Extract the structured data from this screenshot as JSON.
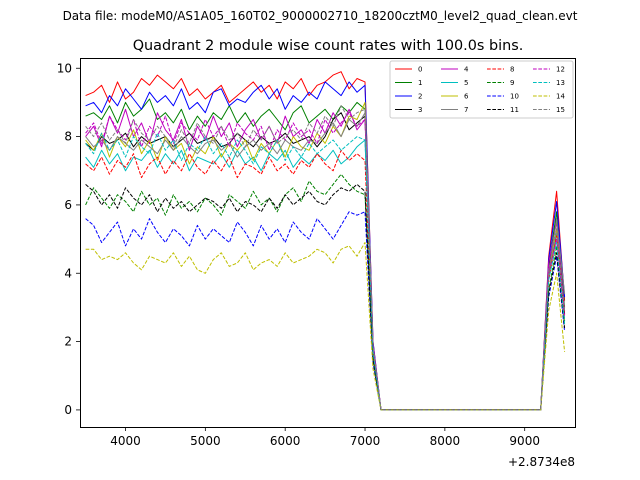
{
  "chart_data": {
    "type": "line",
    "suptitle": "Data file: modeM0/AS1A05_160T02_9000002710_18200cztM0_level2_quad_clean.evt",
    "title": "Quadrant 2 module wise count rates with 100.0s bins.",
    "xlabel": "",
    "ylabel": "",
    "x_offset_label": "+2.8734e8",
    "xlim": [
      3430,
      9630
    ],
    "ylim": [
      -0.5,
      10.3
    ],
    "xticks": [
      "4000",
      "5000",
      "6000",
      "7000",
      "8000",
      "9000"
    ],
    "yticks": [
      "0",
      "2",
      "4",
      "6",
      "8",
      "10"
    ],
    "grid": false,
    "legend_position": "top-right",
    "x": [
      3500,
      3600,
      3700,
      3800,
      3900,
      4000,
      4100,
      4200,
      4300,
      4400,
      4500,
      4600,
      4700,
      4800,
      4900,
      5000,
      5100,
      5200,
      5300,
      5400,
      5500,
      5600,
      5700,
      5800,
      5900,
      6000,
      6100,
      6200,
      6300,
      6400,
      6500,
      6600,
      6700,
      6800,
      6900,
      7000,
      7100,
      7200,
      7300,
      7400,
      7500,
      7600,
      7700,
      7800,
      7900,
      8000,
      8100,
      8200,
      8300,
      8400,
      8500,
      8600,
      8700,
      8800,
      8900,
      9000,
      9100,
      9200,
      9300,
      9400,
      9500
    ],
    "series": [
      {
        "name": "0",
        "color": "#ff0000",
        "dash": "solid",
        "values": [
          9.2,
          9.3,
          9.5,
          9.0,
          9.6,
          9.1,
          9.3,
          9.7,
          9.5,
          9.8,
          9.6,
          9.4,
          9.7,
          9.2,
          9.4,
          9.1,
          9.3,
          9.5,
          9.0,
          9.2,
          9.4,
          9.6,
          9.3,
          9.5,
          9.1,
          9.6,
          9.4,
          9.7,
          9.2,
          9.5,
          9.6,
          9.8,
          9.9,
          9.4,
          9.7,
          9.6,
          2.0,
          0.0,
          0.0,
          0.0,
          0.0,
          0.0,
          0.0,
          0.0,
          0.0,
          0.0,
          0.0,
          0.0,
          0.0,
          0.0,
          0.0,
          0.0,
          0.0,
          0.0,
          0.0,
          0.0,
          0.0,
          0.0,
          4.5,
          6.4,
          3.2
        ]
      },
      {
        "name": "1",
        "color": "#008000",
        "dash": "solid",
        "values": [
          8.6,
          8.7,
          8.5,
          8.9,
          8.4,
          9.0,
          8.6,
          8.8,
          9.1,
          8.5,
          8.7,
          8.4,
          8.8,
          8.2,
          8.6,
          8.3,
          8.7,
          8.5,
          8.9,
          8.4,
          8.7,
          8.3,
          8.6,
          8.8,
          8.5,
          8.2,
          8.7,
          8.9,
          8.4,
          8.6,
          8.8,
          8.5,
          8.9,
          8.7,
          9.0,
          8.8,
          1.8,
          0.0,
          0.0,
          0.0,
          0.0,
          0.0,
          0.0,
          0.0,
          0.0,
          0.0,
          0.0,
          0.0,
          0.0,
          0.0,
          0.0,
          0.0,
          0.0,
          0.0,
          0.0,
          0.0,
          0.0,
          0.0,
          4.2,
          5.8,
          3.0
        ]
      },
      {
        "name": "2",
        "color": "#0000ff",
        "dash": "solid",
        "values": [
          8.9,
          9.0,
          8.7,
          9.2,
          8.9,
          9.4,
          9.1,
          8.8,
          9.3,
          9.0,
          9.2,
          8.9,
          9.4,
          8.8,
          9.0,
          8.7,
          9.3,
          9.4,
          8.9,
          9.1,
          9.0,
          9.3,
          9.5,
          9.1,
          9.4,
          8.8,
          9.2,
          9.0,
          9.3,
          9.1,
          9.6,
          9.4,
          9.2,
          9.6,
          9.3,
          9.5,
          2.0,
          0.0,
          0.0,
          0.0,
          0.0,
          0.0,
          0.0,
          0.0,
          0.0,
          0.0,
          0.0,
          0.0,
          0.0,
          0.0,
          0.0,
          0.0,
          0.0,
          0.0,
          0.0,
          0.0,
          0.0,
          0.0,
          4.4,
          6.1,
          3.3
        ]
      },
      {
        "name": "3",
        "color": "#000000",
        "dash": "solid",
        "values": [
          7.8,
          7.6,
          8.0,
          7.8,
          7.9,
          8.1,
          7.7,
          8.0,
          7.8,
          7.9,
          8.0,
          7.7,
          7.9,
          8.1,
          7.8,
          7.9,
          8.0,
          7.7,
          7.8,
          8.1,
          7.9,
          7.7,
          8.0,
          7.8,
          7.9,
          8.1,
          7.8,
          7.9,
          8.0,
          7.7,
          8.0,
          8.5,
          8.7,
          8.2,
          8.4,
          8.6,
          1.8,
          0.0,
          0.0,
          0.0,
          0.0,
          0.0,
          0.0,
          0.0,
          0.0,
          0.0,
          0.0,
          0.0,
          0.0,
          0.0,
          0.0,
          0.0,
          0.0,
          0.0,
          0.0,
          0.0,
          0.0,
          0.0,
          4.1,
          5.6,
          2.8
        ]
      },
      {
        "name": "4",
        "color": "#bf00bf",
        "dash": "solid",
        "values": [
          8.0,
          8.3,
          7.7,
          8.6,
          8.1,
          8.8,
          8.0,
          8.4,
          7.8,
          8.7,
          8.2,
          7.9,
          8.5,
          7.6,
          8.3,
          7.9,
          8.6,
          8.0,
          8.4,
          7.7,
          8.2,
          8.5,
          7.9,
          8.3,
          7.8,
          8.6,
          8.0,
          8.2,
          7.8,
          8.5,
          8.1,
          8.7,
          8.3,
          8.8,
          8.2,
          8.5,
          1.9,
          0.0,
          0.0,
          0.0,
          0.0,
          0.0,
          0.0,
          0.0,
          0.0,
          0.0,
          0.0,
          0.0,
          0.0,
          0.0,
          0.0,
          0.0,
          0.0,
          0.0,
          0.0,
          0.0,
          0.0,
          0.0,
          4.3,
          5.5,
          2.9
        ]
      },
      {
        "name": "5",
        "color": "#00bfbf",
        "dash": "solid",
        "values": [
          7.4,
          7.1,
          7.6,
          7.2,
          7.5,
          7.0,
          7.4,
          7.3,
          7.6,
          7.1,
          7.5,
          7.2,
          7.6,
          7.0,
          7.4,
          7.3,
          7.2,
          7.5,
          7.1,
          7.6,
          7.2,
          7.4,
          7.0,
          7.5,
          7.3,
          7.6,
          7.1,
          7.4,
          7.2,
          7.5,
          7.3,
          7.6,
          7.2,
          7.4,
          7.7,
          7.9,
          1.7,
          0.0,
          0.0,
          0.0,
          0.0,
          0.0,
          0.0,
          0.0,
          0.0,
          0.0,
          0.0,
          0.0,
          0.0,
          0.0,
          0.0,
          0.0,
          0.0,
          0.0,
          0.0,
          0.0,
          0.0,
          0.0,
          3.9,
          5.2,
          2.6
        ]
      },
      {
        "name": "6",
        "color": "#bfbf00",
        "dash": "solid",
        "values": [
          7.9,
          7.6,
          8.1,
          7.4,
          8.0,
          7.7,
          8.2,
          7.5,
          7.9,
          7.3,
          8.0,
          7.6,
          7.8,
          7.2,
          7.7,
          7.5,
          8.0,
          7.4,
          7.8,
          7.6,
          7.9,
          7.3,
          7.8,
          7.5,
          7.9,
          7.4,
          8.0,
          7.7,
          7.6,
          8.1,
          7.8,
          8.3,
          8.0,
          8.6,
          8.5,
          9.0,
          1.8,
          0.0,
          0.0,
          0.0,
          0.0,
          0.0,
          0.0,
          0.0,
          0.0,
          0.0,
          0.0,
          0.0,
          0.0,
          0.0,
          0.0,
          0.0,
          0.0,
          0.0,
          0.0,
          0.0,
          0.0,
          0.0,
          4.0,
          5.3,
          2.5
        ]
      },
      {
        "name": "7",
        "color": "#808080",
        "dash": "solid",
        "values": [
          8.0,
          7.7,
          7.9,
          7.6,
          8.0,
          7.8,
          7.6,
          7.9,
          7.7,
          7.5,
          7.9,
          7.6,
          8.0,
          7.7,
          7.5,
          7.8,
          7.9,
          7.6,
          7.8,
          7.4,
          7.7,
          7.9,
          7.6,
          7.8,
          7.5,
          7.9,
          7.7,
          7.6,
          7.9,
          7.8,
          8.1,
          8.4,
          8.0,
          8.5,
          8.3,
          8.7,
          1.8,
          0.0,
          0.0,
          0.0,
          0.0,
          0.0,
          0.0,
          0.0,
          0.0,
          0.0,
          0.0,
          0.0,
          0.0,
          0.0,
          0.0,
          0.0,
          0.0,
          0.0,
          0.0,
          0.0,
          0.0,
          0.0,
          4.0,
          5.6,
          3.4
        ]
      },
      {
        "name": "8",
        "color": "#ff0000",
        "dash": "dashed",
        "values": [
          7.2,
          7.0,
          7.4,
          6.9,
          7.3,
          7.1,
          7.5,
          6.8,
          7.2,
          7.4,
          6.9,
          7.3,
          7.0,
          7.5,
          7.1,
          6.9,
          7.3,
          7.0,
          7.4,
          6.8,
          7.2,
          7.1,
          6.9,
          7.4,
          7.0,
          7.2,
          6.9,
          7.3,
          7.1,
          7.5,
          7.2,
          7.0,
          7.6,
          7.3,
          7.5,
          7.3,
          1.6,
          0.0,
          0.0,
          0.0,
          0.0,
          0.0,
          0.0,
          0.0,
          0.0,
          0.0,
          0.0,
          0.0,
          0.0,
          0.0,
          0.0,
          0.0,
          0.0,
          0.0,
          0.0,
          0.0,
          0.0,
          0.0,
          3.8,
          5.1,
          2.8
        ]
      },
      {
        "name": "9",
        "color": "#008000",
        "dash": "dashed",
        "values": [
          6.0,
          6.5,
          6.2,
          5.9,
          6.3,
          6.1,
          5.8,
          6.4,
          6.0,
          6.2,
          5.7,
          6.3,
          5.9,
          6.1,
          5.8,
          6.2,
          6.0,
          5.7,
          6.3,
          6.1,
          5.9,
          6.4,
          6.0,
          6.2,
          5.8,
          6.3,
          6.5,
          6.1,
          6.7,
          6.4,
          6.3,
          6.6,
          6.9,
          6.6,
          6.4,
          6.3,
          1.5,
          0.0,
          0.0,
          0.0,
          0.0,
          0.0,
          0.0,
          0.0,
          0.0,
          0.0,
          0.0,
          0.0,
          0.0,
          0.0,
          0.0,
          0.0,
          0.0,
          0.0,
          0.0,
          0.0,
          0.0,
          0.0,
          3.5,
          4.8,
          2.6
        ]
      },
      {
        "name": "10",
        "color": "#0000ff",
        "dash": "dashed",
        "values": [
          5.6,
          5.4,
          4.9,
          5.2,
          5.5,
          4.8,
          5.3,
          5.0,
          5.6,
          5.2,
          4.9,
          5.3,
          5.1,
          4.8,
          5.4,
          5.0,
          5.3,
          5.1,
          4.9,
          5.5,
          5.2,
          4.8,
          5.4,
          5.0,
          5.3,
          4.9,
          5.5,
          5.2,
          5.0,
          5.6,
          5.3,
          5.0,
          5.4,
          5.8,
          5.7,
          5.8,
          1.4,
          0.0,
          0.0,
          0.0,
          0.0,
          0.0,
          0.0,
          0.0,
          0.0,
          0.0,
          0.0,
          0.0,
          0.0,
          0.0,
          0.0,
          0.0,
          0.0,
          0.0,
          0.0,
          0.0,
          0.0,
          0.0,
          3.3,
          4.5,
          2.3
        ]
      },
      {
        "name": "11",
        "color": "#000000",
        "dash": "dashed",
        "values": [
          6.6,
          6.4,
          6.0,
          6.3,
          5.9,
          6.5,
          6.2,
          6.0,
          6.3,
          5.8,
          6.2,
          5.9,
          6.1,
          5.8,
          6.0,
          6.2,
          6.1,
          5.9,
          6.2,
          5.8,
          6.1,
          6.0,
          5.8,
          6.2,
          5.9,
          6.3,
          6.0,
          6.2,
          6.4,
          6.1,
          6.0,
          6.3,
          6.5,
          6.4,
          6.6,
          6.4,
          1.5,
          0.0,
          0.0,
          0.0,
          0.0,
          0.0,
          0.0,
          0.0,
          0.0,
          0.0,
          0.0,
          0.0,
          0.0,
          0.0,
          0.0,
          0.0,
          0.0,
          0.0,
          0.0,
          0.0,
          0.0,
          0.0,
          3.4,
          4.6,
          2.4
        ]
      },
      {
        "name": "12",
        "color": "#bf00bf",
        "dash": "dashed",
        "values": [
          8.1,
          8.4,
          7.8,
          8.6,
          8.2,
          7.9,
          8.5,
          7.7,
          8.3,
          8.0,
          8.6,
          7.8,
          8.4,
          8.1,
          7.9,
          8.5,
          8.0,
          8.3,
          7.7,
          8.4,
          8.1,
          7.9,
          8.3,
          7.6,
          8.2,
          7.9,
          8.4,
          8.0,
          8.2,
          7.8,
          8.5,
          8.1,
          8.4,
          8.7,
          8.3,
          8.5,
          1.9,
          0.0,
          0.0,
          0.0,
          0.0,
          0.0,
          0.0,
          0.0,
          0.0,
          0.0,
          0.0,
          0.0,
          0.0,
          0.0,
          0.0,
          0.0,
          0.0,
          0.0,
          0.0,
          0.0,
          0.0,
          0.0,
          4.0,
          5.0,
          2.7
        ]
      },
      {
        "name": "13",
        "color": "#00bfbf",
        "dash": "dashed",
        "values": [
          7.8,
          7.5,
          8.1,
          7.6,
          7.9,
          7.4,
          8.0,
          7.7,
          7.5,
          8.1,
          7.6,
          7.9,
          7.3,
          7.8,
          7.6,
          8.0,
          7.5,
          7.8,
          7.4,
          7.9,
          7.6,
          7.2,
          7.7,
          7.5,
          7.9,
          7.3,
          7.7,
          7.4,
          7.8,
          7.5,
          7.7,
          7.9,
          7.6,
          7.8,
          8.0,
          7.9,
          1.7,
          0.0,
          0.0,
          0.0,
          0.0,
          0.0,
          0.0,
          0.0,
          0.0,
          0.0,
          0.0,
          0.0,
          0.0,
          0.0,
          0.0,
          0.0,
          0.0,
          0.0,
          0.0,
          0.0,
          0.0,
          0.0,
          3.8,
          4.9,
          2.5
        ]
      },
      {
        "name": "14",
        "color": "#bfbf00",
        "dash": "dashed",
        "values": [
          4.7,
          4.7,
          4.4,
          4.5,
          4.4,
          4.6,
          4.3,
          4.1,
          4.5,
          4.4,
          4.3,
          4.6,
          4.2,
          4.5,
          4.1,
          4.0,
          4.4,
          4.6,
          4.2,
          4.3,
          4.6,
          4.1,
          4.3,
          4.4,
          4.2,
          4.6,
          4.3,
          4.4,
          4.5,
          4.7,
          4.6,
          4.3,
          4.7,
          4.8,
          4.5,
          4.9,
          1.2,
          0.0,
          0.0,
          0.0,
          0.0,
          0.0,
          0.0,
          0.0,
          0.0,
          0.0,
          0.0,
          0.0,
          0.0,
          0.0,
          0.0,
          0.0,
          0.0,
          0.0,
          0.0,
          0.0,
          0.0,
          0.0,
          2.9,
          4.0,
          1.7
        ]
      },
      {
        "name": "15",
        "color": "#808080",
        "dash": "dashed",
        "values": [
          8.3,
          8.0,
          8.4,
          7.9,
          8.2,
          7.8,
          8.5,
          8.1,
          7.9,
          8.3,
          8.0,
          7.7,
          8.2,
          7.8,
          8.4,
          8.0,
          7.8,
          8.3,
          7.9,
          8.1,
          7.7,
          8.2,
          7.9,
          8.3,
          7.8,
          8.0,
          8.2,
          7.9,
          8.4,
          8.1,
          8.6,
          8.3,
          8.9,
          8.5,
          8.7,
          8.8,
          1.9,
          0.0,
          0.0,
          0.0,
          0.0,
          0.0,
          0.0,
          0.0,
          0.0,
          0.0,
          0.0,
          0.0,
          0.0,
          0.0,
          0.0,
          0.0,
          0.0,
          0.0,
          0.0,
          0.0,
          0.0,
          0.0,
          4.1,
          5.3,
          2.9
        ]
      }
    ]
  }
}
